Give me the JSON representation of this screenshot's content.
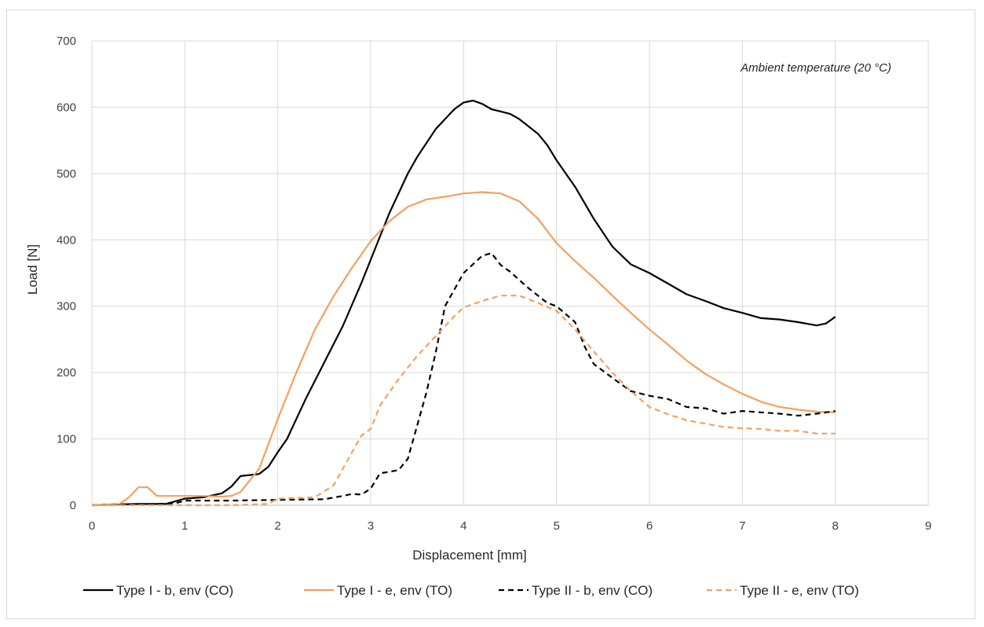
{
  "chart_data": {
    "type": "line",
    "title": "",
    "xlabel": "Displacement [mm]",
    "ylabel": "Load [N]",
    "xlim": [
      0,
      9
    ],
    "ylim": [
      0,
      700
    ],
    "xticks": [
      0,
      1,
      2,
      3,
      4,
      5,
      6,
      7,
      8,
      9
    ],
    "yticks": [
      0,
      100,
      200,
      300,
      400,
      500,
      600,
      700
    ],
    "grid": true,
    "legend_position": "bottom",
    "annotation": "Ambient temperature (20 °C)",
    "series": [
      {
        "name": "Type I - b, env (CO)",
        "color": "#000000",
        "dash": "solid",
        "points": [
          [
            0,
            0
          ],
          [
            0.2,
            1
          ],
          [
            0.5,
            2
          ],
          [
            0.8,
            2
          ],
          [
            1.0,
            10
          ],
          [
            1.2,
            12
          ],
          [
            1.4,
            18
          ],
          [
            1.5,
            28
          ],
          [
            1.6,
            44
          ],
          [
            1.8,
            47
          ],
          [
            1.9,
            58
          ],
          [
            2.0,
            80
          ],
          [
            2.1,
            100
          ],
          [
            2.3,
            160
          ],
          [
            2.5,
            215
          ],
          [
            2.7,
            270
          ],
          [
            2.9,
            335
          ],
          [
            3.0,
            370
          ],
          [
            3.2,
            440
          ],
          [
            3.4,
            500
          ],
          [
            3.5,
            525
          ],
          [
            3.7,
            567
          ],
          [
            3.9,
            597
          ],
          [
            4.0,
            607
          ],
          [
            4.1,
            610
          ],
          [
            4.2,
            605
          ],
          [
            4.3,
            597
          ],
          [
            4.5,
            590
          ],
          [
            4.6,
            582
          ],
          [
            4.8,
            560
          ],
          [
            4.9,
            543
          ],
          [
            5.0,
            520
          ],
          [
            5.2,
            480
          ],
          [
            5.4,
            432
          ],
          [
            5.6,
            390
          ],
          [
            5.8,
            363
          ],
          [
            6.0,
            350
          ],
          [
            6.2,
            334
          ],
          [
            6.4,
            318
          ],
          [
            6.6,
            308
          ],
          [
            6.8,
            297
          ],
          [
            7.0,
            290
          ],
          [
            7.2,
            282
          ],
          [
            7.4,
            280
          ],
          [
            7.6,
            276
          ],
          [
            7.8,
            271
          ],
          [
            7.9,
            274
          ],
          [
            8.0,
            284
          ]
        ]
      },
      {
        "name": "Type I - e, env (TO)",
        "color": "#f4a05f",
        "dash": "solid",
        "points": [
          [
            0,
            0
          ],
          [
            0.3,
            2
          ],
          [
            0.4,
            12
          ],
          [
            0.5,
            27
          ],
          [
            0.6,
            27
          ],
          [
            0.7,
            14
          ],
          [
            1.0,
            14
          ],
          [
            1.2,
            14
          ],
          [
            1.4,
            13
          ],
          [
            1.5,
            14
          ],
          [
            1.6,
            20
          ],
          [
            1.8,
            55
          ],
          [
            2.0,
            130
          ],
          [
            2.2,
            200
          ],
          [
            2.4,
            265
          ],
          [
            2.6,
            315
          ],
          [
            2.8,
            358
          ],
          [
            3.0,
            398
          ],
          [
            3.2,
            428
          ],
          [
            3.4,
            450
          ],
          [
            3.6,
            461
          ],
          [
            3.8,
            465
          ],
          [
            4.0,
            470
          ],
          [
            4.2,
            472
          ],
          [
            4.4,
            470
          ],
          [
            4.6,
            458
          ],
          [
            4.8,
            432
          ],
          [
            5.0,
            395
          ],
          [
            5.2,
            368
          ],
          [
            5.4,
            343
          ],
          [
            5.6,
            316
          ],
          [
            5.8,
            290
          ],
          [
            6.0,
            265
          ],
          [
            6.2,
            242
          ],
          [
            6.4,
            218
          ],
          [
            6.6,
            198
          ],
          [
            6.8,
            182
          ],
          [
            7.0,
            168
          ],
          [
            7.2,
            156
          ],
          [
            7.4,
            148
          ],
          [
            7.6,
            144
          ],
          [
            7.8,
            141
          ],
          [
            8.0,
            140
          ]
        ]
      },
      {
        "name": "Type II - b, env (CO)",
        "color": "#000000",
        "dash": "dashed",
        "points": [
          [
            0,
            0
          ],
          [
            0.5,
            1
          ],
          [
            0.9,
            3
          ],
          [
            1.0,
            7
          ],
          [
            1.5,
            7
          ],
          [
            2.0,
            8
          ],
          [
            2.5,
            9
          ],
          [
            2.7,
            14
          ],
          [
            2.8,
            17
          ],
          [
            2.9,
            16
          ],
          [
            3.0,
            25
          ],
          [
            3.1,
            48
          ],
          [
            3.3,
            53
          ],
          [
            3.4,
            70
          ],
          [
            3.5,
            120
          ],
          [
            3.6,
            170
          ],
          [
            3.7,
            230
          ],
          [
            3.8,
            300
          ],
          [
            4.0,
            350
          ],
          [
            4.2,
            376
          ],
          [
            4.3,
            380
          ],
          [
            4.4,
            362
          ],
          [
            4.5,
            352
          ],
          [
            4.7,
            327
          ],
          [
            4.9,
            305
          ],
          [
            5.0,
            300
          ],
          [
            5.2,
            276
          ],
          [
            5.3,
            240
          ],
          [
            5.4,
            213
          ],
          [
            5.6,
            192
          ],
          [
            5.7,
            182
          ],
          [
            5.8,
            172
          ],
          [
            6.0,
            165
          ],
          [
            6.2,
            160
          ],
          [
            6.4,
            148
          ],
          [
            6.6,
            146
          ],
          [
            6.8,
            138
          ],
          [
            7.0,
            142
          ],
          [
            7.2,
            140
          ],
          [
            7.4,
            138
          ],
          [
            7.6,
            135
          ],
          [
            7.8,
            138
          ],
          [
            8.0,
            142
          ]
        ]
      },
      {
        "name": "Type II - e, env (TO)",
        "color": "#f4a05f",
        "dash": "dashed",
        "points": [
          [
            0,
            0
          ],
          [
            1.0,
            0
          ],
          [
            1.5,
            0
          ],
          [
            1.9,
            2
          ],
          [
            2.0,
            10
          ],
          [
            2.4,
            12
          ],
          [
            2.6,
            30
          ],
          [
            2.8,
            80
          ],
          [
            2.9,
            105
          ],
          [
            3.0,
            115
          ],
          [
            3.1,
            150
          ],
          [
            3.3,
            190
          ],
          [
            3.5,
            225
          ],
          [
            3.7,
            255
          ],
          [
            3.9,
            285
          ],
          [
            4.0,
            298
          ],
          [
            4.2,
            308
          ],
          [
            4.4,
            316
          ],
          [
            4.6,
            316
          ],
          [
            4.8,
            305
          ],
          [
            5.0,
            293
          ],
          [
            5.2,
            265
          ],
          [
            5.4,
            232
          ],
          [
            5.6,
            200
          ],
          [
            5.8,
            172
          ],
          [
            6.0,
            148
          ],
          [
            6.2,
            137
          ],
          [
            6.4,
            128
          ],
          [
            6.6,
            123
          ],
          [
            6.8,
            118
          ],
          [
            7.0,
            116
          ],
          [
            7.2,
            115
          ],
          [
            7.4,
            112
          ],
          [
            7.6,
            112
          ],
          [
            7.8,
            108
          ],
          [
            8.0,
            108
          ]
        ]
      }
    ]
  }
}
